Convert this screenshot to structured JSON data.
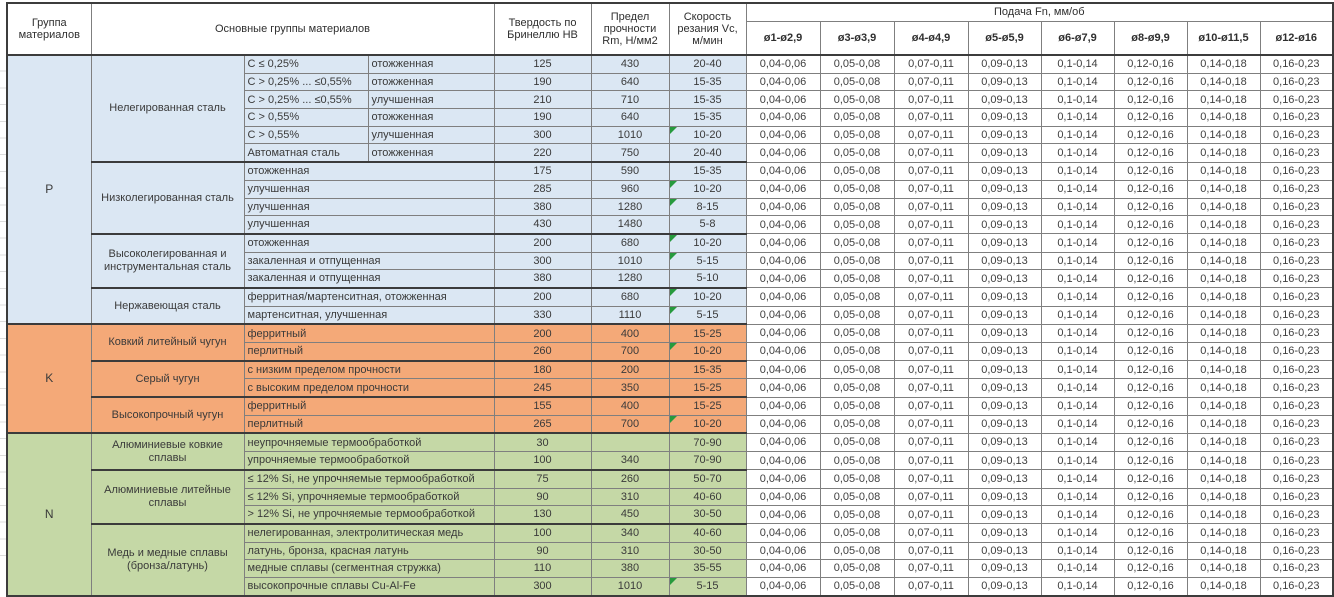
{
  "header": {
    "col_group": "Группа материалов",
    "col_materials": "Основные группы материалов",
    "col_hardness": "Твердость по Бринеллю HB",
    "col_strength": "Предел прочности Rm, Н/мм2",
    "col_speed": "Скорость резания Vc, м/мин",
    "feed_title": "Подача Fn, мм/об",
    "diameters": [
      "ø1-ø2,9",
      "ø3-ø3,9",
      "ø4-ø4,9",
      "ø5-ø5,9",
      "ø6-ø7,9",
      "ø8-ø9,9",
      "ø10-ø11,5",
      "ø12-ø16"
    ]
  },
  "feed_values": [
    "0,04-0,06",
    "0,05-0,08",
    "0,07-0,11",
    "0,09-0,13",
    "0,1-0,14",
    "0,12-0,16",
    "0,14-0,18",
    "0,16-0,23"
  ],
  "colors": {
    "group_p": "#dbe7f3",
    "group_k": "#f4a978",
    "group_n": "#c5d8a6",
    "error_indicator": "#279a3d"
  },
  "rows": [
    {
      "g": "P",
      "gs": 15,
      "c": "p",
      "sg": "Нелегированная сталь",
      "sgs": 6,
      "d": [
        [
          "C ≤ 0,25%"
        ],
        [
          "отожженная"
        ]
      ],
      "hb": "125",
      "rm": "430",
      "vc": "20-40",
      "f": false
    },
    {
      "c": "p",
      "d": [
        [
          "C > 0,25% ... ≤0,55%"
        ],
        [
          "отожженная"
        ]
      ],
      "hb": "190",
      "rm": "640",
      "vc": "15-35",
      "f": false
    },
    {
      "c": "p",
      "d": [
        [
          "C > 0,25% ... ≤0,55%"
        ],
        [
          "улучшенная"
        ]
      ],
      "hb": "210",
      "rm": "710",
      "vc": "15-35",
      "f": false
    },
    {
      "c": "p",
      "d": [
        [
          "C > 0,55%"
        ],
        [
          "отожженная"
        ]
      ],
      "hb": "190",
      "rm": "640",
      "vc": "15-35",
      "f": false
    },
    {
      "c": "p",
      "d": [
        [
          "C > 0,55%"
        ],
        [
          "улучшенная"
        ]
      ],
      "hb": "300",
      "rm": "1010",
      "vc": "10-20",
      "f": true
    },
    {
      "c": "p",
      "d": [
        [
          "Автоматная сталь"
        ],
        [
          "отожженная"
        ]
      ],
      "hb": "220",
      "rm": "750",
      "vc": "20-40",
      "f": false
    },
    {
      "c": "p",
      "sg": "Низколегированная сталь",
      "sgs": 4,
      "d": [
        [
          "отожженная",
          2
        ]
      ],
      "hb": "175",
      "rm": "590",
      "vc": "15-35",
      "f": false
    },
    {
      "c": "p",
      "d": [
        [
          "улучшенная",
          2
        ]
      ],
      "hb": "285",
      "rm": "960",
      "vc": "10-20",
      "f": true
    },
    {
      "c": "p",
      "d": [
        [
          "улучшенная",
          2
        ]
      ],
      "hb": "380",
      "rm": "1280",
      "vc": "8-15",
      "f": true
    },
    {
      "c": "p",
      "d": [
        [
          "улучшенная",
          2
        ]
      ],
      "hb": "430",
      "rm": "1480",
      "vc": "5-8",
      "f": false
    },
    {
      "c": "p",
      "sg": "Высоколегированная и инструментальная сталь",
      "sgs": 3,
      "d": [
        [
          "отожженная",
          2
        ]
      ],
      "hb": "200",
      "rm": "680",
      "vc": "10-20",
      "f": true
    },
    {
      "c": "p",
      "d": [
        [
          "закаленная и отпущенная",
          2
        ]
      ],
      "hb": "300",
      "rm": "1010",
      "vc": "5-15",
      "f": true
    },
    {
      "c": "p",
      "d": [
        [
          "закаленная и отпущенная",
          2
        ]
      ],
      "hb": "380",
      "rm": "1280",
      "vc": "5-10",
      "f": false
    },
    {
      "c": "p",
      "sg": "Нержавеющая сталь",
      "sgs": 2,
      "d": [
        [
          "ферритная/мартенситная, отожженная",
          2
        ]
      ],
      "hb": "200",
      "rm": "680",
      "vc": "10-20",
      "f": true
    },
    {
      "c": "p",
      "d": [
        [
          "мартенситная, улучшенная",
          2
        ]
      ],
      "hb": "330",
      "rm": "1110",
      "vc": "5-15",
      "f": true
    },
    {
      "g": "K",
      "gs": 6,
      "c": "k",
      "sg": "Ковкий литейный чугун",
      "sgs": 2,
      "d": [
        [
          "ферритный",
          2
        ]
      ],
      "hb": "200",
      "rm": "400",
      "vc": "15-25",
      "f": false
    },
    {
      "c": "k",
      "d": [
        [
          "перлитный",
          2
        ]
      ],
      "hb": "260",
      "rm": "700",
      "vc": "10-20",
      "f": true
    },
    {
      "c": "k",
      "sg": "Серый чугун",
      "sgs": 2,
      "d": [
        [
          "с низким пределом прочности",
          2
        ]
      ],
      "hb": "180",
      "rm": "200",
      "vc": "15-35",
      "f": false
    },
    {
      "c": "k",
      "d": [
        [
          "с высоким пределом прочности",
          2
        ]
      ],
      "hb": "245",
      "rm": "350",
      "vc": "15-25",
      "f": false
    },
    {
      "c": "k",
      "sg": "Высокопрочный чугун",
      "sgs": 2,
      "d": [
        [
          "ферритный",
          2
        ]
      ],
      "hb": "155",
      "rm": "400",
      "vc": "15-25",
      "f": false
    },
    {
      "c": "k",
      "d": [
        [
          "перлитный",
          2
        ]
      ],
      "hb": "265",
      "rm": "700",
      "vc": "10-20",
      "f": true
    },
    {
      "g": "N",
      "gs": 9,
      "c": "n",
      "sg": "Алюминиевые ковкие сплавы",
      "sgs": 2,
      "d": [
        [
          "неупрочняемые термообработкой",
          2
        ]
      ],
      "hb": "30",
      "rm": "",
      "vc": "70-90",
      "f": false
    },
    {
      "c": "n",
      "d": [
        [
          "упрочняемые термообработкой",
          2
        ]
      ],
      "hb": "100",
      "rm": "340",
      "vc": "70-90",
      "f": false
    },
    {
      "c": "n",
      "sg": "Алюминиевые литейные сплавы",
      "sgs": 3,
      "d": [
        [
          "≤ 12% Si, не упрочняемые термообработкой",
          2
        ]
      ],
      "hb": "75",
      "rm": "260",
      "vc": "50-70",
      "f": false
    },
    {
      "c": "n",
      "d": [
        [
          "≤ 12% Si, упрочняемые термообработкой",
          2
        ]
      ],
      "hb": "90",
      "rm": "310",
      "vc": "40-60",
      "f": false
    },
    {
      "c": "n",
      "d": [
        [
          "> 12% Si, не упрочняемые термообработкой",
          2
        ]
      ],
      "hb": "130",
      "rm": "450",
      "vc": "30-50",
      "f": false
    },
    {
      "c": "n",
      "sg": "Медь и медные сплавы (бронза/латунь)",
      "sgs": 4,
      "d": [
        [
          "нелегированная, электролитическая медь",
          2
        ]
      ],
      "hb": "100",
      "rm": "340",
      "vc": "40-60",
      "f": false
    },
    {
      "c": "n",
      "d": [
        [
          "латунь, бронза, красная латунь",
          2
        ]
      ],
      "hb": "90",
      "rm": "310",
      "vc": "30-50",
      "f": false
    },
    {
      "c": "n",
      "d": [
        [
          "медные сплавы (сегментная стружка)",
          2
        ]
      ],
      "hb": "110",
      "rm": "380",
      "vc": "35-55",
      "f": false
    },
    {
      "c": "n",
      "d": [
        [
          "высокопрочные сплавы Cu-Al-Fe",
          2
        ]
      ],
      "hb": "300",
      "rm": "1010",
      "vc": "5-15",
      "f": true
    }
  ]
}
